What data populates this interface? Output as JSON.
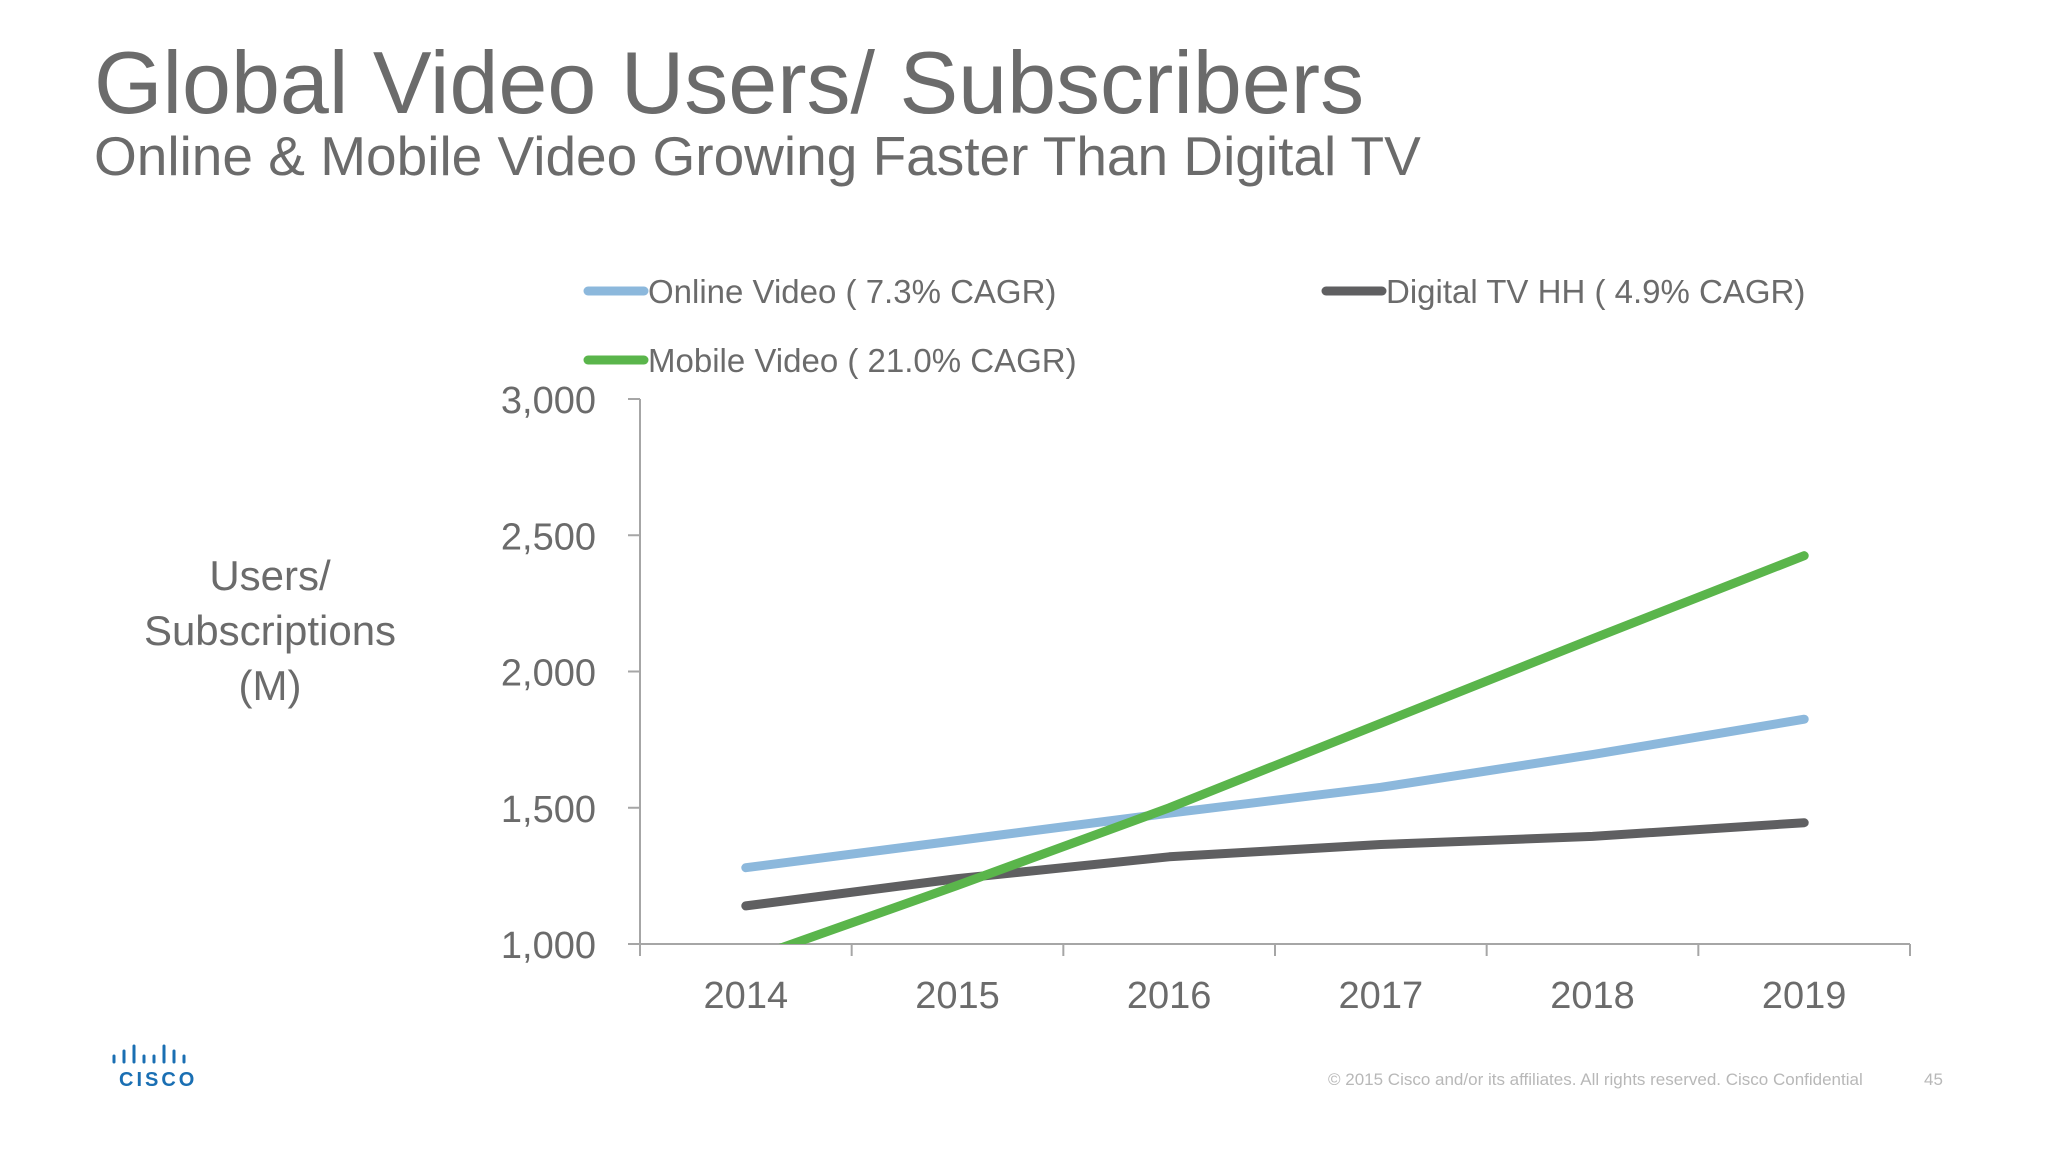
{
  "slide": {
    "title": "Global  Video Users/ Subscribers",
    "subtitle": "Online & Mobile Video Growing Faster Than Digital TV",
    "footer": "© 2015  Cisco and/or its affiliates. All rights reserved.   Cisco Confidential",
    "page_number": "45",
    "logo_text": "CISCO"
  },
  "colors": {
    "online": "#8cb8dc",
    "digital_tv": "#5f5f61",
    "mobile": "#5ab54b",
    "text": "#6b6b6b",
    "axis": "#a6a6a6"
  },
  "chart_data": {
    "type": "line",
    "ylabel_lines": [
      "Users/",
      "Subscriptions",
      "(M)"
    ],
    "categories": [
      "2014",
      "2015",
      "2016",
      "2017",
      "2018",
      "2019"
    ],
    "ylim": [
      1000,
      3000
    ],
    "yticks": [
      1000,
      1500,
      2000,
      2500,
      3000
    ],
    "ytick_labels": [
      "1,000",
      "1,500",
      "2,000",
      "2,500",
      "3,000"
    ],
    "grid": false,
    "legend_position": "top",
    "series": [
      {
        "key": "online",
        "name": "Online Video ( 7.3% CAGR)",
        "values": [
          1280,
          1380,
          1480,
          1575,
          1695,
          1825
        ]
      },
      {
        "key": "digital_tv",
        "name": "Digital TV HH ( 4.9% CAGR)",
        "values": [
          1140,
          1240,
          1320,
          1365,
          1395,
          1445
        ]
      },
      {
        "key": "mobile",
        "name": "Mobile Video ( 21.0% CAGR)",
        "values": [
          940,
          1215,
          1500,
          1810,
          2120,
          2425
        ]
      }
    ]
  }
}
